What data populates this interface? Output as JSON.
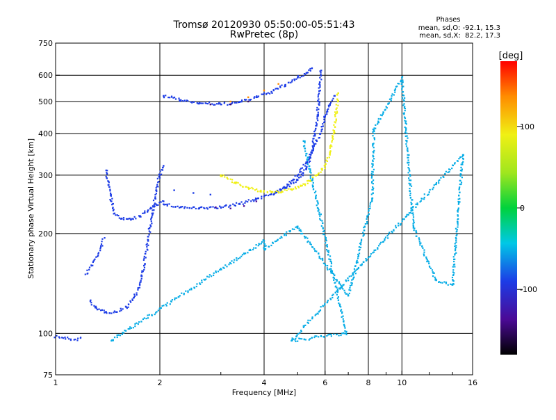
{
  "chart_data": {
    "type": "scatter",
    "title": "Tromsø 20120930 05:50:00-05:51:43",
    "subtitle": "RwPretec (8p)",
    "xlabel": "Frequency [MHz]",
    "ylabel": "Stationary phase Virtual Height [km]",
    "x_scale": "log",
    "y_scale": "log",
    "xlim": [
      1,
      16
    ],
    "ylim": [
      75,
      750
    ],
    "x_ticks": [
      1,
      2,
      4,
      6,
      8,
      10,
      16
    ],
    "x_tick_labels": [
      "1",
      "2",
      "4",
      "6",
      "8",
      "10",
      "16"
    ],
    "y_ticks": [
      75,
      100,
      200,
      300,
      400,
      500,
      600,
      750
    ],
    "y_tick_labels": [
      "75",
      "100",
      "200",
      "300",
      "400",
      "500",
      "600",
      "750"
    ],
    "grid": true,
    "phases_box": {
      "title": "Phases",
      "line_o": "mean, sd,O: -92.1, 15.3",
      "line_x": "mean, sd,X:  82.2, 17.3"
    },
    "colorbar": {
      "label": "[deg]",
      "range": [
        -180,
        180
      ],
      "ticks": [
        100,
        0,
        -100
      ],
      "tick_labels": [
        "100",
        "0",
        "-100"
      ]
    },
    "colors": {
      "blue_trace": "#1c3ce6",
      "purple_trace": "#4a1aa0",
      "yellow_trace": "#d6e81a"
    },
    "traces": [
      {
        "name": "",
        "phase": -100,
        "points": [
          [
            1.0,
            98
          ],
          [
            1.05,
            97
          ],
          [
            1.1,
            96
          ],
          [
            1.15,
            96
          ],
          [
            1.2,
            97
          ]
        ]
      },
      {
        "name": "",
        "phase": -100,
        "points": [
          [
            1.22,
            150
          ],
          [
            1.27,
            160
          ],
          [
            1.32,
            172
          ],
          [
            1.36,
            185
          ],
          [
            1.38,
            195
          ]
        ]
      },
      {
        "name": "",
        "phase": -100,
        "points": [
          [
            1.26,
            125
          ],
          [
            1.32,
            118
          ],
          [
            1.4,
            116
          ],
          [
            1.5,
            116
          ],
          [
            1.6,
            120
          ],
          [
            1.68,
            128
          ],
          [
            1.75,
            140
          ],
          [
            1.8,
            160
          ],
          [
            1.85,
            190
          ],
          [
            1.9,
            230
          ],
          [
            1.95,
            270
          ],
          [
            2.0,
            300
          ],
          [
            2.05,
            320
          ]
        ]
      },
      {
        "name": "",
        "phase": -100,
        "points": [
          [
            1.4,
            310
          ],
          [
            1.42,
            280
          ],
          [
            1.45,
            250
          ],
          [
            1.48,
            230
          ],
          [
            1.55,
            222
          ],
          [
            1.65,
            220
          ],
          [
            1.75,
            225
          ],
          [
            1.85,
            235
          ],
          [
            1.95,
            245
          ],
          [
            2.05,
            250
          ]
        ]
      },
      {
        "name": "",
        "phase": -100,
        "points": [
          [
            2.05,
            245
          ],
          [
            2.3,
            240
          ],
          [
            2.6,
            238
          ],
          [
            3.0,
            240
          ],
          [
            3.4,
            246
          ],
          [
            3.8,
            254
          ],
          [
            4.2,
            263
          ],
          [
            4.6,
            274
          ],
          [
            5.0,
            290
          ],
          [
            5.3,
            315
          ],
          [
            5.5,
            350
          ],
          [
            5.6,
            400
          ],
          [
            5.7,
            450
          ],
          [
            5.75,
            500
          ],
          [
            5.8,
            560
          ],
          [
            5.85,
            620
          ]
        ]
      },
      {
        "name": "",
        "phase": -100,
        "points": [
          [
            2.05,
            520
          ],
          [
            2.3,
            505
          ],
          [
            2.6,
            495
          ],
          [
            3.0,
            490
          ],
          [
            3.4,
            498
          ],
          [
            3.8,
            515
          ],
          [
            4.2,
            535
          ],
          [
            4.6,
            560
          ],
          [
            5.0,
            590
          ],
          [
            5.3,
            610
          ],
          [
            5.5,
            630
          ]
        ]
      },
      {
        "name": "",
        "phase": -100,
        "points": [
          [
            2.2,
            270
          ],
          [
            2.5,
            265
          ],
          [
            2.8,
            262
          ]
        ]
      },
      {
        "name": "",
        "phase": -100,
        "points": [
          [
            4.3,
            265
          ],
          [
            4.6,
            275
          ],
          [
            5.0,
            300
          ],
          [
            5.4,
            340
          ],
          [
            5.8,
            400
          ],
          [
            6.0,
            450
          ],
          [
            6.2,
            490
          ],
          [
            6.4,
            520
          ]
        ]
      },
      {
        "name": "",
        "phase": 100,
        "points": [
          [
            3.0,
            300
          ],
          [
            3.3,
            285
          ],
          [
            3.6,
            275
          ],
          [
            3.9,
            268
          ],
          [
            4.2,
            266
          ],
          [
            4.5,
            268
          ],
          [
            4.8,
            272
          ],
          [
            5.1,
            278
          ],
          [
            5.4,
            288
          ],
          [
            5.7,
            300
          ],
          [
            6.0,
            320
          ],
          [
            6.2,
            350
          ],
          [
            6.35,
            400
          ],
          [
            6.45,
            460
          ],
          [
            6.55,
            530
          ]
        ]
      },
      {
        "name": "",
        "phase": 140,
        "points": [
          [
            3.2,
            500
          ],
          [
            3.6,
            515
          ],
          [
            4.0,
            540
          ],
          [
            4.4,
            565
          ]
        ]
      },
      {
        "name": "",
        "phase": -140,
        "points": [
          [
            2.9,
            240
          ],
          [
            3.2,
            238
          ],
          [
            3.5,
            242
          ],
          [
            3.8,
            250
          ]
        ]
      },
      {
        "name": "",
        "phase": -150,
        "points": [
          [
            2.8,
            490
          ],
          [
            3.2,
            490
          ],
          [
            3.6,
            500
          ]
        ]
      },
      {
        "name": "",
        "phase": -60,
        "points": [
          [
            1.45,
            95
          ],
          [
            4.0,
            190
          ],
          [
            4.0,
            180
          ],
          [
            5.0,
            210
          ],
          [
            7.0,
            130
          ],
          [
            8.2,
            255
          ],
          [
            8.3,
            410
          ],
          [
            10.0,
            590
          ],
          [
            10.8,
            210
          ],
          [
            12.5,
            145
          ],
          [
            14.0,
            140
          ],
          [
            15.0,
            345
          ],
          [
            4.8,
            95
          ],
          [
            6.9,
            100
          ],
          [
            5.2,
            380
          ]
        ]
      }
    ]
  }
}
